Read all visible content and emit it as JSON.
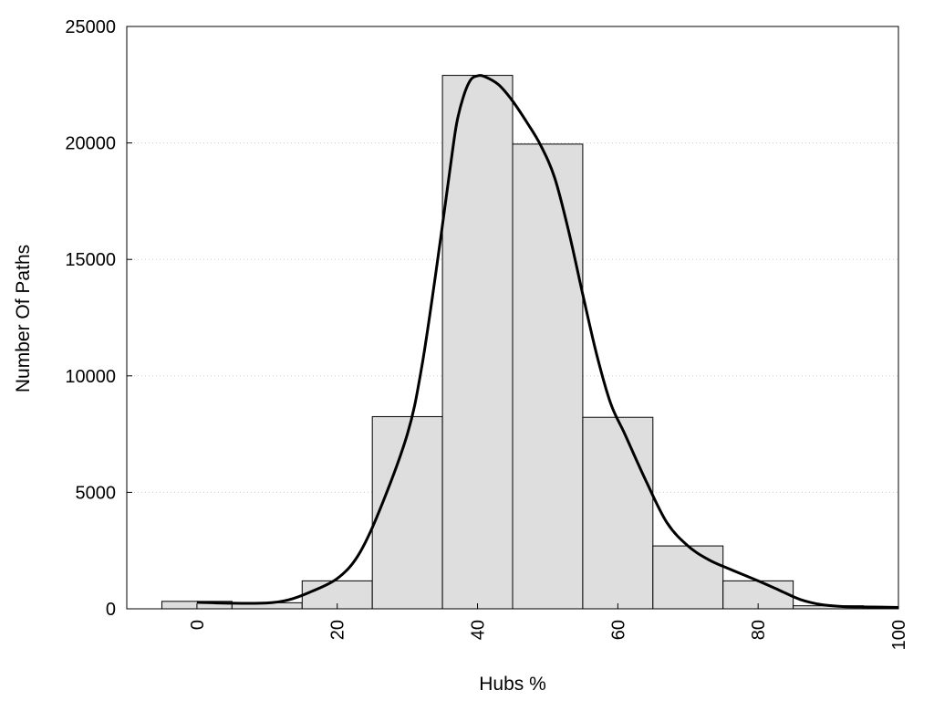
{
  "chart_data": {
    "type": "bar",
    "xlabel": "Hubs %",
    "ylabel": "Number Of Paths",
    "xlim": [
      -10,
      100
    ],
    "ylim": [
      0,
      25000
    ],
    "x_ticks": [
      0,
      20,
      40,
      60,
      80,
      100
    ],
    "y_ticks": [
      0,
      5000,
      10000,
      15000,
      20000,
      25000
    ],
    "grid": "horizontal dotted",
    "bin_width": 10,
    "bars": [
      {
        "center": 0,
        "value": 320
      },
      {
        "center": 10,
        "value": 260
      },
      {
        "center": 20,
        "value": 1200
      },
      {
        "center": 30,
        "value": 8250
      },
      {
        "center": 40,
        "value": 22900
      },
      {
        "center": 50,
        "value": 19950
      },
      {
        "center": 60,
        "value": 8220
      },
      {
        "center": 70,
        "value": 2700
      },
      {
        "center": 80,
        "value": 1200
      },
      {
        "center": 90,
        "value": 130
      },
      {
        "center": 100,
        "value": 60
      }
    ],
    "curve": {
      "x": [
        0,
        5,
        10,
        13,
        16,
        20,
        23,
        26,
        30,
        32,
        34,
        36,
        37,
        38,
        39,
        40,
        41,
        43,
        45,
        47,
        49,
        51,
        53,
        55,
        57,
        59,
        61,
        64,
        67,
        70,
        73,
        76,
        80,
        83,
        86,
        89,
        92,
        96,
        100
      ],
      "y": [
        280,
        240,
        250,
        380,
        700,
        1300,
        2300,
        4200,
        7500,
        10300,
        14300,
        18700,
        20800,
        22000,
        22700,
        22880,
        22850,
        22500,
        21800,
        20900,
        19900,
        18500,
        16200,
        13500,
        10900,
        8800,
        7500,
        5500,
        3700,
        2700,
        2100,
        1700,
        1200,
        800,
        400,
        180,
        100,
        80,
        60
      ]
    },
    "colors": {
      "bar_fill": "#dedede",
      "bar_stroke": "#000000",
      "curve": "#000000",
      "grid": "#cccccc"
    }
  }
}
